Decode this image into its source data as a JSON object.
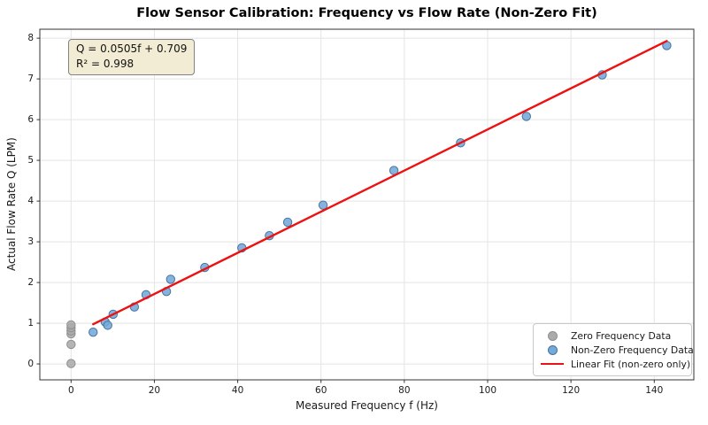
{
  "chart_data": {
    "type": "scatter",
    "title": "Flow Sensor Calibration: Frequency vs Flow Rate (Non-Zero Fit)",
    "xlabel": "Measured Frequency f (Hz)",
    "ylabel": "Actual Flow Rate Q (LPM)",
    "xlim": [
      -7.5,
      149.5
    ],
    "ylim": [
      -0.39,
      8.22
    ],
    "x_ticks": [
      0,
      20,
      40,
      60,
      80,
      100,
      120,
      140
    ],
    "y_ticks": [
      0,
      1,
      2,
      3,
      4,
      5,
      6,
      7,
      8
    ],
    "grid": true,
    "legend_position": "lower right",
    "annotation": {
      "equation": "Q = 0.0505f + 0.709",
      "r_squared": "R² = 0.998"
    },
    "fit": {
      "label": "Linear Fit (non-zero only)",
      "slope": 0.0505,
      "intercept": 0.709,
      "x_start": 5.3,
      "x_end": 143.0,
      "color": "#ee1111"
    },
    "series": [
      {
        "name": "Zero Frequency Data",
        "marker_color": "#ababab",
        "marker_edge": "#8f8f8f",
        "points": [
          [
            0,
            0.01
          ],
          [
            0,
            0.48
          ],
          [
            0,
            0.74
          ],
          [
            0,
            0.81
          ],
          [
            0,
            0.89
          ],
          [
            0,
            0.96
          ]
        ]
      },
      {
        "name": "Non-Zero Frequency Data",
        "marker_color": "#74a9d8",
        "marker_edge": "#44749f",
        "points": [
          [
            5.3,
            0.78
          ],
          [
            8.2,
            1.03
          ],
          [
            8.8,
            0.95
          ],
          [
            10.1,
            1.22
          ],
          [
            15.2,
            1.4
          ],
          [
            18.0,
            1.7
          ],
          [
            22.9,
            1.78
          ],
          [
            23.9,
            2.08
          ],
          [
            32.1,
            2.37
          ],
          [
            41.0,
            2.85
          ],
          [
            47.6,
            3.15
          ],
          [
            52.0,
            3.48
          ],
          [
            60.5,
            3.9
          ],
          [
            77.5,
            4.75
          ],
          [
            93.5,
            5.43
          ],
          [
            109.3,
            6.08
          ],
          [
            127.5,
            7.1
          ],
          [
            143.0,
            7.82
          ]
        ]
      }
    ],
    "colors": {
      "grid": "#e4e4e4",
      "spine": "#333333",
      "text": "#1a1a1a",
      "annotation_bg": "#f2ecd5",
      "annotation_border": "#838383"
    }
  }
}
